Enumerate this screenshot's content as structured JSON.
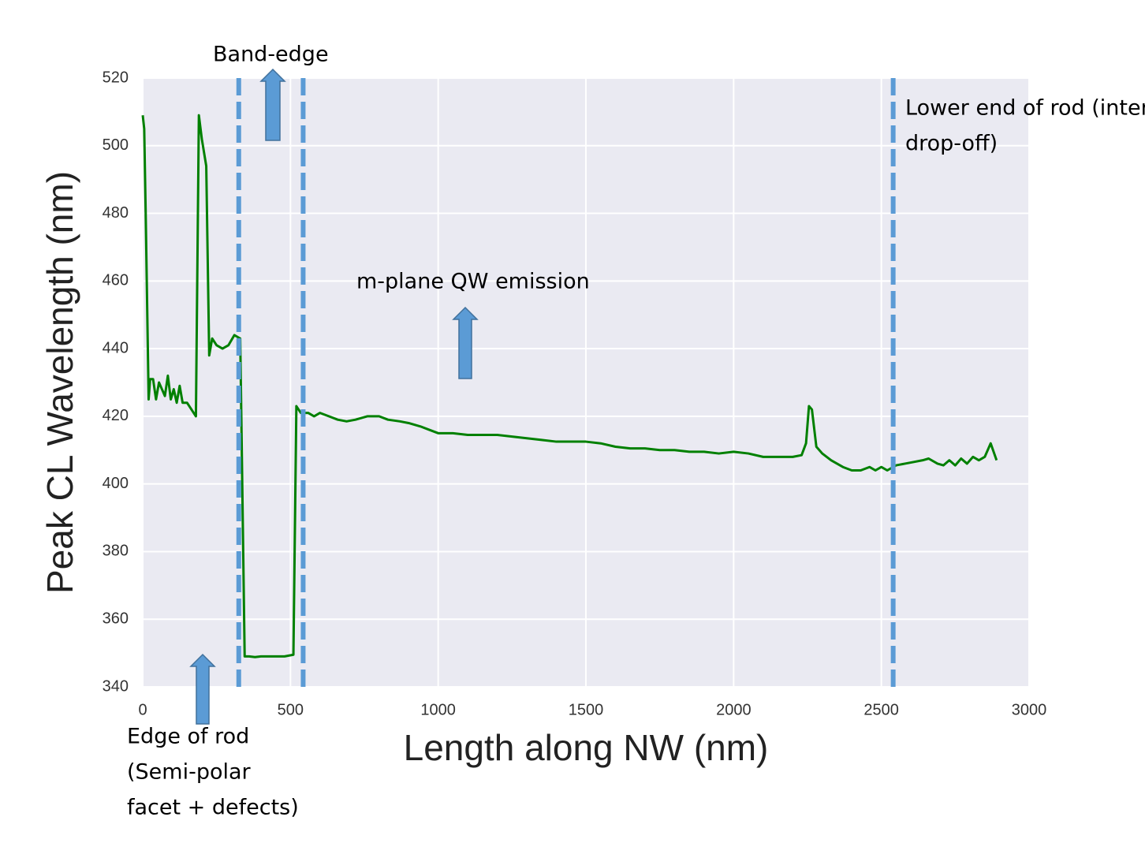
{
  "chart_data": {
    "type": "line",
    "xlabel": "Length along NW (nm)",
    "ylabel": "Peak CL Wavelength (nm)",
    "xlim": [
      0,
      3000
    ],
    "ylim": [
      340,
      520
    ],
    "xticks": [
      0,
      500,
      1000,
      1500,
      2000,
      2500,
      3000
    ],
    "yticks": [
      340,
      360,
      380,
      400,
      420,
      440,
      460,
      480,
      500,
      520
    ],
    "grid": true,
    "x": [
      0,
      5,
      10,
      20,
      25,
      35,
      45,
      55,
      65,
      75,
      85,
      95,
      105,
      115,
      125,
      135,
      150,
      165,
      180,
      190,
      200,
      215,
      225,
      235,
      250,
      270,
      290,
      310,
      330,
      345,
      360,
      380,
      400,
      420,
      440,
      460,
      480,
      510,
      520,
      535,
      560,
      580,
      600,
      630,
      660,
      690,
      720,
      760,
      800,
      830,
      870,
      900,
      940,
      970,
      1000,
      1050,
      1100,
      1150,
      1200,
      1250,
      1300,
      1350,
      1400,
      1450,
      1500,
      1550,
      1600,
      1650,
      1700,
      1750,
      1800,
      1850,
      1900,
      1950,
      2000,
      2050,
      2100,
      2150,
      2200,
      2230,
      2245,
      2255,
      2265,
      2280,
      2300,
      2330,
      2370,
      2400,
      2430,
      2460,
      2480,
      2500,
      2520,
      2550,
      2580,
      2610,
      2640,
      2660,
      2690,
      2710,
      2730,
      2750,
      2770,
      2790,
      2810,
      2830,
      2850,
      2870,
      2890
    ],
    "series": [
      {
        "color": "#008000",
        "values": [
          509,
          505,
          480,
          425,
          431,
          431,
          425,
          430,
          428,
          426,
          432,
          425,
          428,
          424,
          429,
          424,
          424,
          422,
          420,
          509,
          502,
          494,
          438,
          443,
          441,
          440,
          441,
          444,
          443,
          349,
          349,
          348.8,
          349,
          349,
          349,
          349,
          349,
          349.5,
          423,
          421,
          421,
          420,
          421,
          420,
          419,
          418.5,
          419,
          420,
          420,
          419,
          418.5,
          418,
          417,
          416,
          415,
          415,
          414.5,
          414.5,
          414.5,
          414,
          413.5,
          413,
          412.5,
          412.5,
          412.5,
          412,
          411,
          410.5,
          410.5,
          410,
          410,
          409.5,
          409.5,
          409,
          409.5,
          409,
          408,
          408,
          408,
          408.5,
          412,
          423,
          422,
          411,
          409,
          407,
          405,
          404,
          404,
          405,
          404,
          405,
          404,
          405.5,
          406,
          406.5,
          407,
          407.5,
          406,
          405.5,
          407,
          405.5,
          407.5,
          406,
          408,
          407,
          408,
          412,
          407
        ]
      }
    ],
    "vlines": {
      "color": "#5b9bd5",
      "x": [
        325,
        543,
        2540
      ]
    },
    "annotations": [
      {
        "lines": [
          "Band-edge"
        ]
      },
      {
        "lines": [
          "Lower end of rod (intensity",
          "drop-off)"
        ]
      },
      {
        "lines": [
          "m-plane QW emission"
        ]
      },
      {
        "lines": [
          "Edge of rod",
          "(Semi-polar",
          "facet + defects)"
        ]
      }
    ]
  }
}
